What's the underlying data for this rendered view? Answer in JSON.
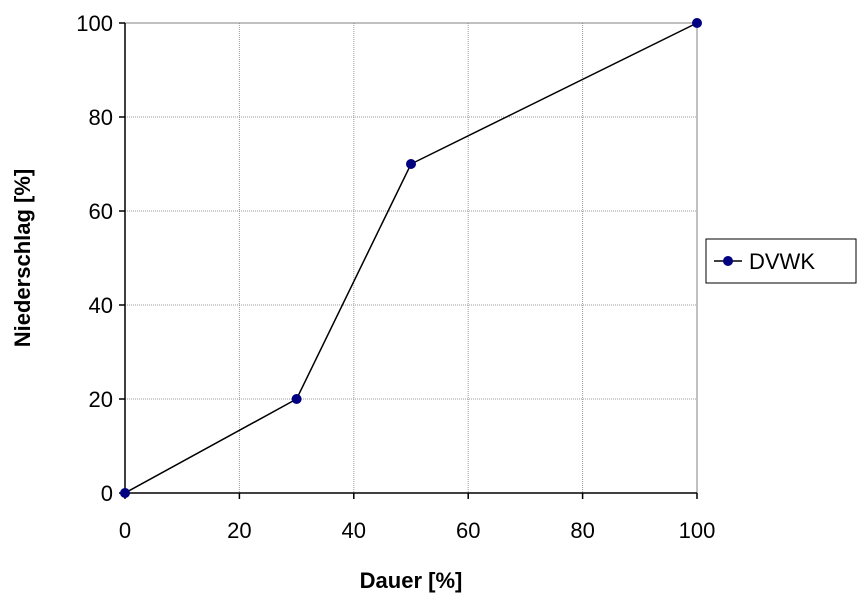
{
  "chart_data": {
    "type": "line",
    "xlabel": "Dauer [%]",
    "ylabel": "Niederschlag [%]",
    "xlim": [
      0,
      100
    ],
    "ylim": [
      0,
      100
    ],
    "x_ticks": [
      "0",
      "20",
      "40",
      "60",
      "80",
      "100"
    ],
    "y_ticks": [
      "0",
      "20",
      "40",
      "60",
      "80",
      "100"
    ],
    "grid": true,
    "legend_position": "right",
    "series": [
      {
        "name": "DVWK",
        "x": [
          0,
          30,
          50,
          100
        ],
        "y": [
          0,
          20,
          70,
          100
        ],
        "color": "#000080",
        "line_color": "#000000"
      }
    ]
  }
}
